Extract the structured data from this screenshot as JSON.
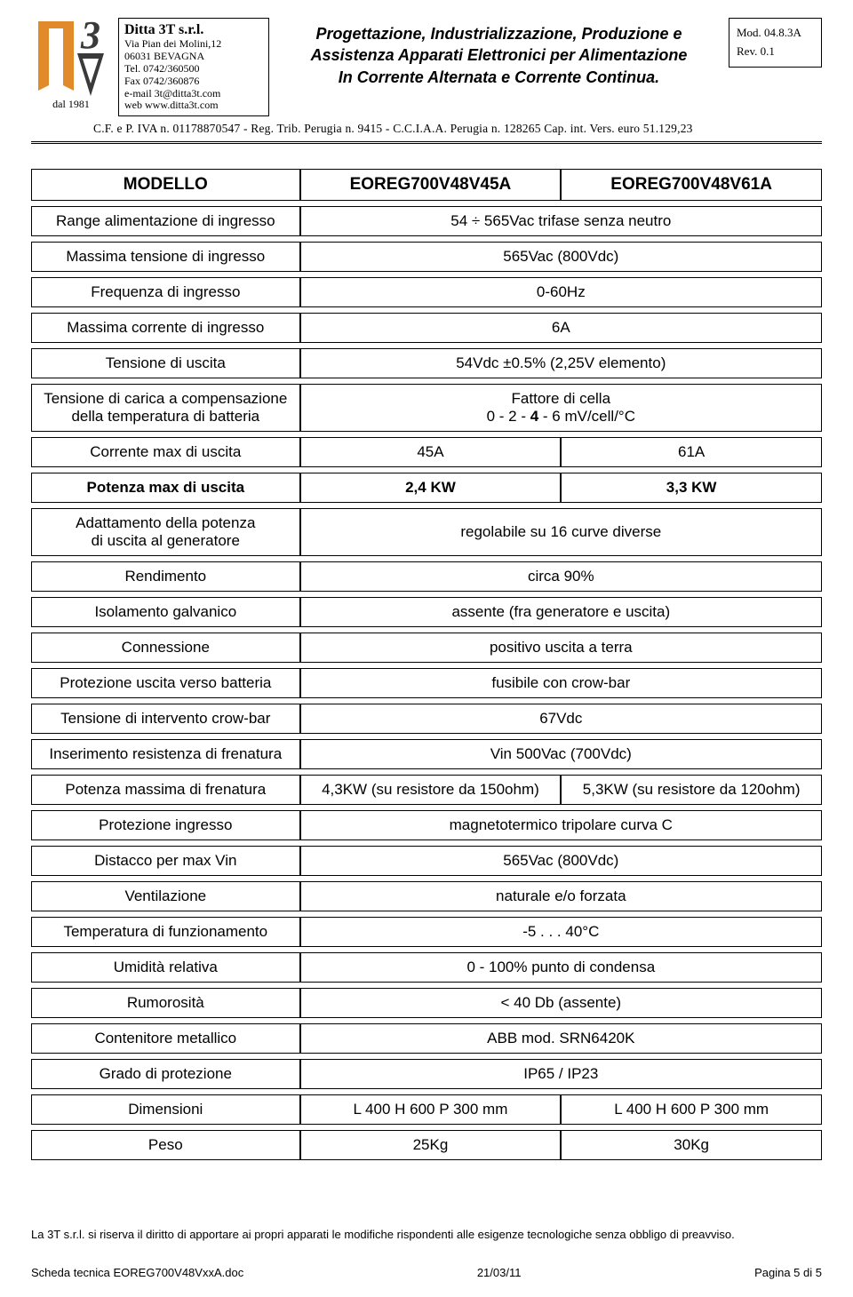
{
  "header": {
    "dal": "dal 1981",
    "company": {
      "name": "Ditta 3T s.r.l.",
      "addr1": "Via Pian dei Molini,12",
      "addr2": "06031 BEVAGNA",
      "tel": "Tel. 0742/360500",
      "fax": "Fax 0742/360876",
      "email": "e-mail   3t@ditta3t.com",
      "web": "web    www.ditta3t.com"
    },
    "title1": "Progettazione, Industrializzazione, Produzione e",
    "title2": "Assistenza Apparati Elettronici per Alimentazione",
    "title3": "In Corrente Alternata e Corrente Continua.",
    "mod": "Mod. 04.8.3A",
    "rev": "Rev. 0.1",
    "reg": "C.F. e P. IVA n. 01178870547 - Reg.  Trib.  Perugia  n.  9415 - C.C.I.A.A.  Perugia  n.  128265   Cap.  int.  Vers.  euro  51.129,23"
  },
  "table": {
    "hdr": {
      "c0": "MODELLO",
      "c1": "EOREG700V48V45A",
      "c2": "EOREG700V48V61A"
    },
    "rows": [
      {
        "label": "Range alimentazione di ingresso",
        "span": "54 ÷ 565Vac  trifase senza neutro"
      },
      {
        "label": "Massima tensione di ingresso",
        "span": "565Vac (800Vdc)"
      },
      {
        "label": "Frequenza di ingresso",
        "span": "0-60Hz"
      },
      {
        "label": "Massima corrente di ingresso",
        "span": "6A"
      },
      {
        "label": "Tensione di uscita",
        "span": "54Vdc  ±0.5% (2,25V elemento)"
      },
      {
        "label": "Tensione di carica a compensazione\ndella temperatura di batteria",
        "span": "Fattore di cella\n0 - 2 - 4 - 6 mV/cell/°C",
        "spanBoldPart": "4"
      },
      {
        "label": "Corrente max di uscita",
        "a": "45A",
        "b": "61A"
      },
      {
        "label": "Potenza max di uscita",
        "a": "2,4 KW",
        "b": "3,3 KW",
        "bold": true
      },
      {
        "label": "Adattamento  della potenza\ndi uscita al generatore",
        "span": "regolabile su 16 curve diverse"
      },
      {
        "label": "Rendimento",
        "span": "circa 90%"
      },
      {
        "label": "Isolamento galvanico",
        "span": "assente (fra generatore e uscita)"
      },
      {
        "label": "Connessione",
        "span": "positivo uscita a terra"
      },
      {
        "label": "Protezione uscita verso batteria",
        "span": "fusibile con crow-bar"
      },
      {
        "label": "Tensione di intervento crow-bar",
        "span": "67Vdc"
      },
      {
        "label": "Inserimento resistenza di frenatura",
        "span": "Vin  500Vac  (700Vdc)"
      },
      {
        "label": "Potenza massima di frenatura",
        "a": "4,3KW  (su resistore da 150ohm)",
        "b": "5,3KW  (su resistore da 120ohm)"
      },
      {
        "label": "Protezione ingresso",
        "span": "magnetotermico tripolare curva C"
      },
      {
        "label": "Distacco per max Vin",
        "span": "565Vac (800Vdc)"
      },
      {
        "label": "Ventilazione",
        "span": "naturale e/o forzata"
      },
      {
        "label": "Temperatura di funzionamento",
        "span": "-5 . . . 40°C"
      },
      {
        "label": "Umidità relativa",
        "span": "0 - 100% punto di condensa"
      },
      {
        "label": "Rumorosità",
        "span": "< 40 Db (assente)"
      },
      {
        "label": "Contenitore metallico",
        "span": "ABB mod. SRN6420K"
      },
      {
        "label": "Grado di protezione",
        "span": "IP65  /  IP23"
      },
      {
        "label": "Dimensioni",
        "a": "L 400    H 600    P 300 mm",
        "b": "L 400    H 600    P 300 mm"
      },
      {
        "label": "Peso",
        "a": "25Kg",
        "b": "30Kg"
      }
    ]
  },
  "disclaimer": "La 3T s.r.l. si riserva il diritto di apportare ai propri apparati le modifiche rispondenti alle esigenze tecnologiche senza obbligo di preavviso.",
  "footer": {
    "left": "Scheda tecnica EOREG700V48VxxA.doc",
    "center": "21/03/11",
    "right": "Pagina 5 di 5"
  },
  "colors": {
    "logo_orange": "#e08a2a",
    "logo_dark": "#3a3a3a"
  }
}
